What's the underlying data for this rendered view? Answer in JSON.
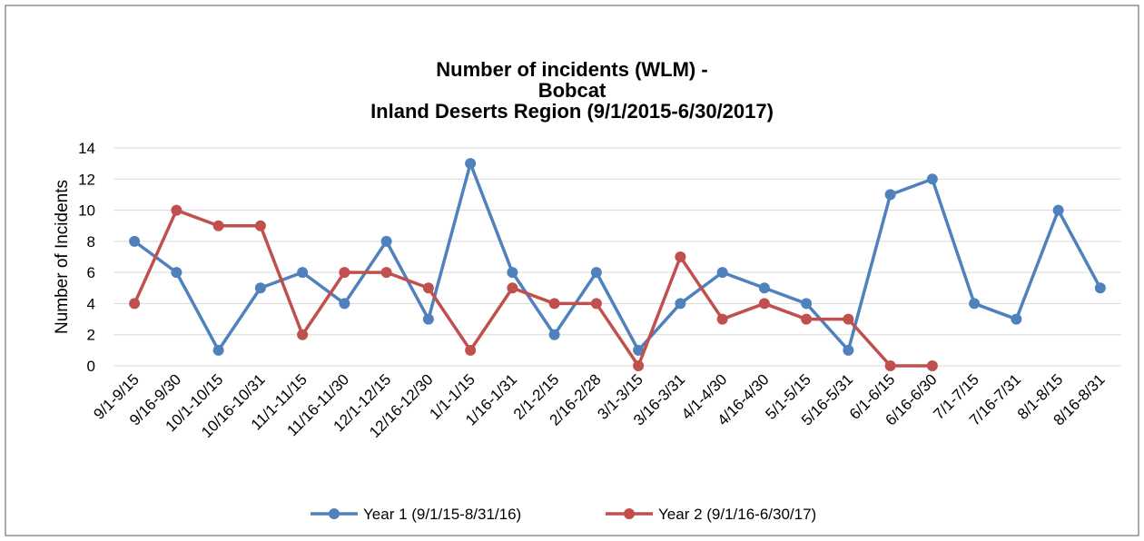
{
  "chart_data": {
    "type": "line",
    "title": [
      "Number of incidents (WLM) -",
      "Bobcat",
      "Inland Deserts Region (9/1/2015-6/30/2017)"
    ],
    "y_label": "Number of Incidents",
    "categories": [
      "9/1-9/15",
      "9/16-9/30",
      "10/1-10/15",
      "10/16-10/31",
      "11/1-11/15",
      "11/16-11/30",
      "12/1-12/15",
      "12/16-12/30",
      "1/1-1/15",
      "1/16-1/31",
      "2/1-2/15",
      "2/16-2/28",
      "3/1-3/15",
      "3/16-3/31",
      "4/1-4/30",
      "4/16-4/30",
      "5/1-5/15",
      "5/16-5/31",
      "6/1-6/15",
      "6/16-6/30",
      "7/1-7/15",
      "7/16-7/31",
      "8/1-8/15",
      "8/16-8/31"
    ],
    "series": [
      {
        "name": "Year 1 (9/1/15-8/31/16)",
        "color": "#4f81bd",
        "values": [
          8,
          6,
          1,
          5,
          6,
          4,
          8,
          3,
          13,
          6,
          2,
          6,
          1,
          4,
          6,
          5,
          4,
          1,
          11,
          12,
          4,
          3,
          10,
          5
        ]
      },
      {
        "name": "Year 2 (9/1/16-6/30/17)",
        "color": "#c0504d",
        "values": [
          4,
          10,
          9,
          9,
          2,
          6,
          6,
          5,
          1,
          5,
          4,
          4,
          0,
          7,
          3,
          4,
          3,
          3,
          0,
          0,
          null,
          null,
          null,
          null
        ]
      }
    ],
    "ylim": [
      0,
      14
    ],
    "yticks": [
      0,
      2,
      4,
      6,
      8,
      10,
      12,
      14
    ],
    "grid": true,
    "legend": "bottom"
  }
}
